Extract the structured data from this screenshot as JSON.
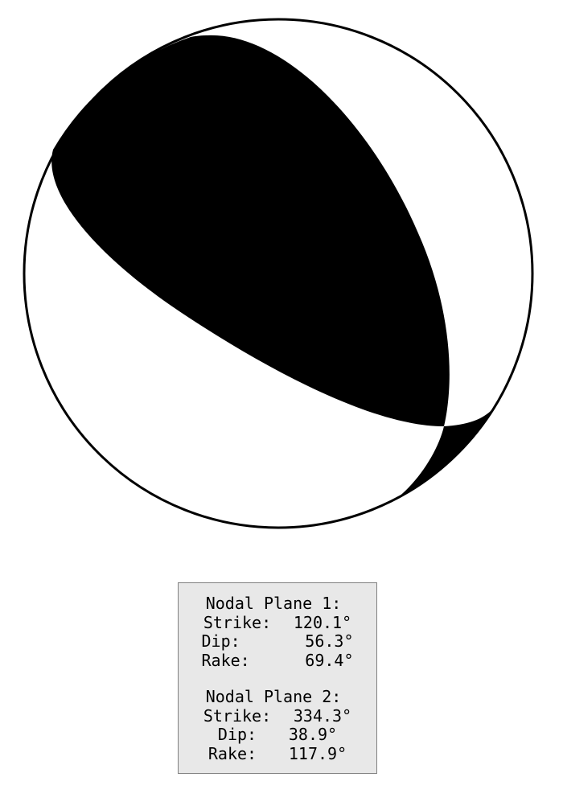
{
  "colors": {
    "compression": "#000000",
    "dilatation": "#ffffff",
    "outline": "#000000",
    "box_background": "#e8e8e8",
    "box_border": "#808080"
  },
  "nodal_plane_1": {
    "title": "Nodal Plane 1:",
    "strike_label": "Strike:",
    "strike": "120.1°",
    "dip_label": "Dip:",
    "dip": "56.3°",
    "rake_label": "Rake:",
    "rake": "69.4°"
  },
  "nodal_plane_2": {
    "title": "Nodal Plane 2:",
    "strike_label": "Strike:",
    "strike": "334.3°",
    "dip_label": "Dip:",
    "dip": "38.9°",
    "rake_label": "Rake:",
    "rake": "117.9°"
  }
}
